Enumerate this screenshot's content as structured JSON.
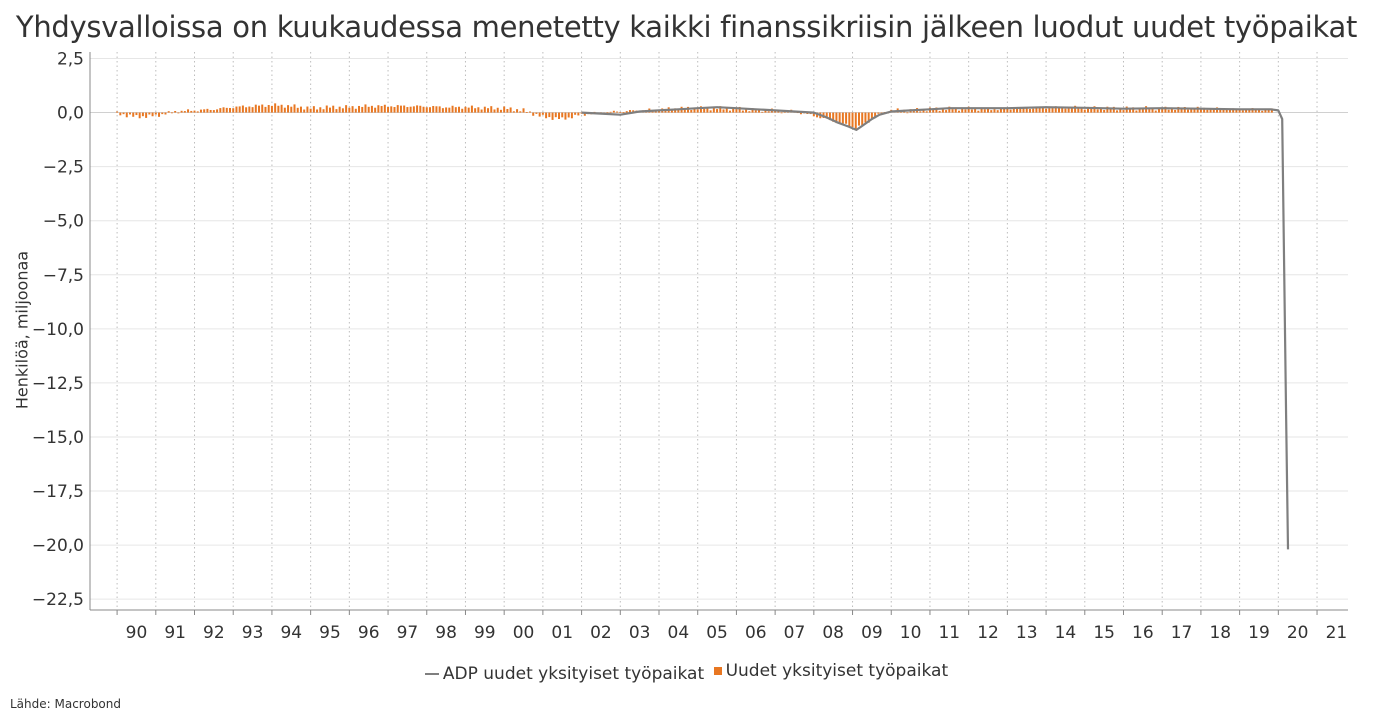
{
  "chart_data": {
    "type": "line+bar",
    "title": "Yhdysvalloissa on kuukaudessa menetetty kaikki finanssikriisin jälkeen luodut uudet työpaikat",
    "ylabel": "Henkilöä, miljoonaa",
    "ylim": [
      -23,
      2.8
    ],
    "yticks": [
      "2,5",
      "0,0",
      "-2,5",
      "-5,0",
      "-7,5",
      "-10,0",
      "-12,5",
      "-15,0",
      "-17,5",
      "-20,0",
      "-22,5"
    ],
    "ytick_values": [
      2.5,
      0,
      -2.5,
      -5,
      -7.5,
      -10,
      -12.5,
      -15,
      -17.5,
      -20,
      -22.5
    ],
    "xlim": [
      1989.3,
      2021.8
    ],
    "xticks": [
      "90",
      "91",
      "92",
      "93",
      "94",
      "95",
      "96",
      "97",
      "98",
      "99",
      "00",
      "01",
      "02",
      "03",
      "04",
      "05",
      "06",
      "07",
      "08",
      "09",
      "10",
      "11",
      "12",
      "13",
      "14",
      "15",
      "16",
      "17",
      "18",
      "19",
      "20",
      "21"
    ],
    "grid": true,
    "series": [
      {
        "name": "ADP uudet yksityiset työpaikat",
        "kind": "line",
        "color": "#7f7f7f",
        "x": [
          2002.0,
          2002.5,
          2003.0,
          2003.5,
          2004.0,
          2004.5,
          2005.0,
          2005.5,
          2006.0,
          2006.5,
          2007.0,
          2007.5,
          2008.0,
          2008.3,
          2008.6,
          2008.9,
          2009.1,
          2009.3,
          2009.5,
          2009.7,
          2010.0,
          2010.5,
          2011.0,
          2011.5,
          2012.0,
          2013.0,
          2014.0,
          2015.0,
          2016.0,
          2017.0,
          2018.0,
          2019.0,
          2019.8,
          2020.0,
          2020.1,
          2020.2,
          2020.25
        ],
        "y": [
          0.0,
          -0.05,
          -0.1,
          0.05,
          0.1,
          0.15,
          0.2,
          0.25,
          0.2,
          0.15,
          0.1,
          0.05,
          0.0,
          -0.2,
          -0.45,
          -0.65,
          -0.8,
          -0.55,
          -0.3,
          -0.1,
          0.05,
          0.1,
          0.15,
          0.2,
          0.2,
          0.2,
          0.25,
          0.22,
          0.18,
          0.2,
          0.18,
          0.15,
          0.15,
          0.1,
          -0.3,
          -14.0,
          -20.2
        ]
      },
      {
        "name": "Uudet yksityiset työpaikat",
        "kind": "bar",
        "color": "#e87722",
        "x": [
          1990.0,
          1990.5,
          1991.0,
          1991.5,
          1992.0,
          1992.5,
          1993.0,
          1993.5,
          1994.0,
          1994.5,
          1995.0,
          1995.5,
          1996.0,
          1996.5,
          1997.0,
          1997.5,
          1998.0,
          1998.5,
          1999.0,
          1999.5,
          2000.0,
          2000.5,
          2001.0,
          2001.5,
          2002.0,
          2002.5,
          2003.0,
          2003.5,
          2004.0,
          2004.5,
          2005.0,
          2005.5,
          2006.0,
          2006.5,
          2007.0,
          2007.5,
          2008.0,
          2008.3,
          2008.6,
          2008.9,
          2009.1,
          2009.3,
          2009.5,
          2009.7,
          2010.0,
          2010.5,
          2011.0,
          2011.5,
          2012.0,
          2012.5,
          2013.0,
          2013.5,
          2014.0,
          2014.5,
          2015.0,
          2015.5,
          2016.0,
          2016.5,
          2017.0,
          2017.5,
          2018.0,
          2018.5,
          2019.0,
          2019.5,
          2019.9
        ],
        "y": [
          -0.05,
          -0.2,
          -0.15,
          0.05,
          0.1,
          0.15,
          0.25,
          0.3,
          0.35,
          0.3,
          0.2,
          0.25,
          0.25,
          0.3,
          0.3,
          0.3,
          0.28,
          0.25,
          0.25,
          0.22,
          0.2,
          0.1,
          -0.2,
          -0.3,
          -0.1,
          0.0,
          0.05,
          0.1,
          0.15,
          0.2,
          0.2,
          0.2,
          0.18,
          0.12,
          0.1,
          0.05,
          -0.15,
          -0.3,
          -0.45,
          -0.6,
          -0.7,
          -0.55,
          -0.3,
          -0.1,
          0.1,
          0.1,
          0.15,
          0.18,
          0.18,
          0.15,
          0.18,
          0.2,
          0.22,
          0.25,
          0.22,
          0.2,
          0.18,
          0.2,
          0.18,
          0.2,
          0.2,
          0.18,
          0.15,
          0.15,
          0.12
        ]
      }
    ]
  },
  "legend": {
    "line_label": "ADP uudet yksityiset työpaikat",
    "bar_label": "Uudet yksityiset työpaikat"
  },
  "source": "Lähde: Macrobond"
}
